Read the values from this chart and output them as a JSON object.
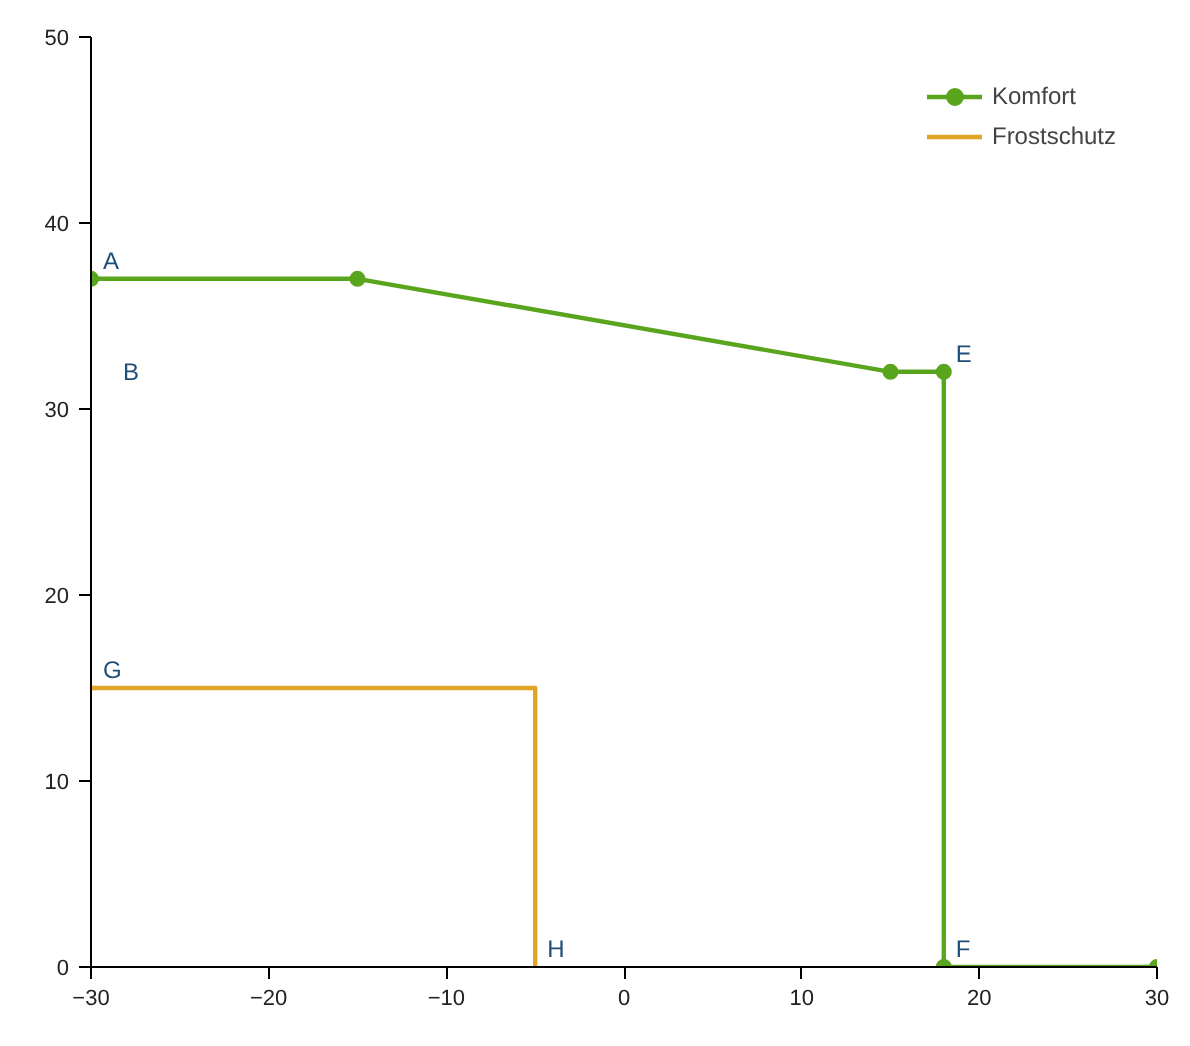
{
  "chart_data": {
    "type": "line",
    "xlim": [
      -30,
      30
    ],
    "ylim": [
      0,
      50
    ],
    "xticks": [
      -30,
      -20,
      -10,
      0,
      10,
      20,
      30
    ],
    "yticks": [
      0,
      10,
      20,
      30,
      40,
      50
    ],
    "grid": false,
    "legend": "top right",
    "series": [
      {
        "name": "Komfort",
        "color": "#5aa51e",
        "marker": "circle",
        "x": [
          -30,
          -15,
          15,
          18,
          18,
          30
        ],
        "values": [
          37,
          37,
          32,
          32,
          0,
          0
        ]
      },
      {
        "name": "Frostschutz",
        "color": "#e0a526",
        "marker": "none",
        "x": [
          -30,
          -5,
          -5
        ],
        "values": [
          15,
          15,
          0
        ]
      }
    ],
    "annotations": [
      {
        "text": "A",
        "x": -30,
        "y": 37
      },
      "B",
      {
        "text": "E",
        "x": 18,
        "y": 32
      },
      {
        "text": "F",
        "x": 18,
        "y": 0
      },
      {
        "text": "G",
        "x": -30,
        "y": 15
      },
      {
        "text": "H",
        "x": -5,
        "y": 0
      }
    ]
  }
}
